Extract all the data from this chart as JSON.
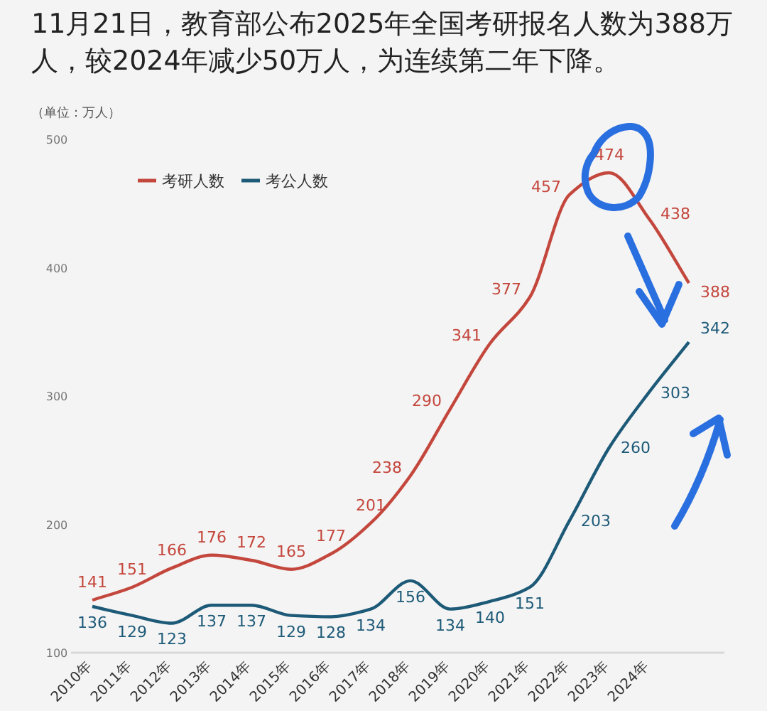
{
  "chart_data": {
    "type": "line",
    "title": "11月21日，教育部公布2025年全国考研报名人数为388万人，较2024年减少50万人，为连续第二年下降。",
    "ylabel": "（单位：万人）",
    "categories": [
      "2010年",
      "2011年",
      "2012年",
      "2013年",
      "2014年",
      "2015年",
      "2016年",
      "2017年",
      "2018年",
      "2019年",
      "2020年",
      "2021年",
      "2022年",
      "2023年",
      "2024年",
      null
    ],
    "series": [
      {
        "name": "考研人数",
        "color": "#c4473d",
        "values": [
          141,
          151,
          166,
          176,
          172,
          165,
          177,
          201,
          238,
          290,
          341,
          377,
          457,
          474,
          438,
          388
        ]
      },
      {
        "name": "考公人数",
        "color": "#1d5a78",
        "values": [
          136,
          129,
          123,
          137,
          137,
          129,
          128,
          134,
          156,
          134,
          140,
          151,
          203,
          260,
          303,
          342
        ]
      }
    ],
    "ylim": [
      100,
      500
    ],
    "yticks": [
      100,
      200,
      300,
      400,
      500
    ],
    "data_labels": true,
    "legend": "top left",
    "marker": "none",
    "line_style": "solid",
    "grid": false
  }
}
